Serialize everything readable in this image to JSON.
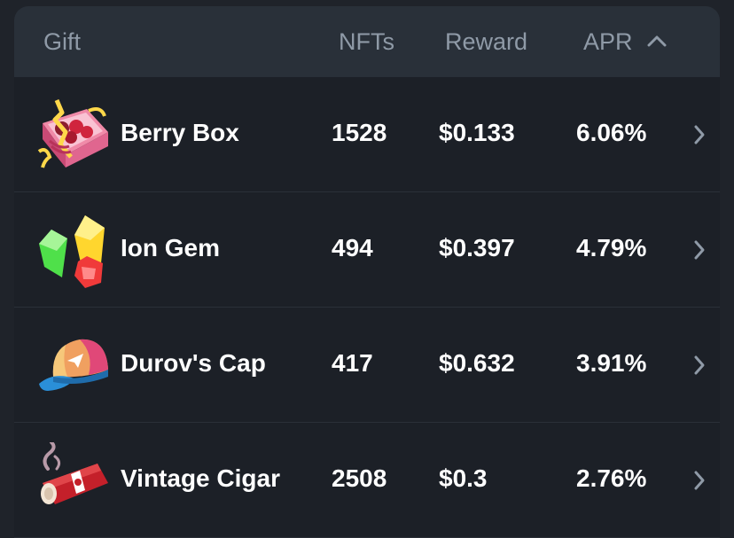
{
  "header": {
    "gift_label": "Gift",
    "nfts_label": "NFTs",
    "reward_label": "Reward",
    "apr_label": "APR",
    "sort_icon": "chevron-up-icon"
  },
  "rows": [
    {
      "name": "Berry Box",
      "nfts": "1528",
      "reward": "$0.133",
      "apr": "6.06%",
      "icon": "berry-box-icon"
    },
    {
      "name": "Ion Gem",
      "nfts": "494",
      "reward": "$0.397",
      "apr": "4.79%",
      "icon": "ion-gem-icon"
    },
    {
      "name": "Durov's Cap",
      "nfts": "417",
      "reward": "$0.632",
      "apr": "3.91%",
      "icon": "durovs-cap-icon"
    },
    {
      "name": "Vintage Cigar",
      "nfts": "2508",
      "reward": "$0.3",
      "apr": "2.76%",
      "icon": "vintage-cigar-icon"
    }
  ],
  "colors": {
    "background": "#1f232a",
    "panel": "#1c2027",
    "header_bg": "#293039",
    "header_text": "#8f9aa7",
    "row_text": "#ffffff",
    "divider": "#2b3038"
  }
}
